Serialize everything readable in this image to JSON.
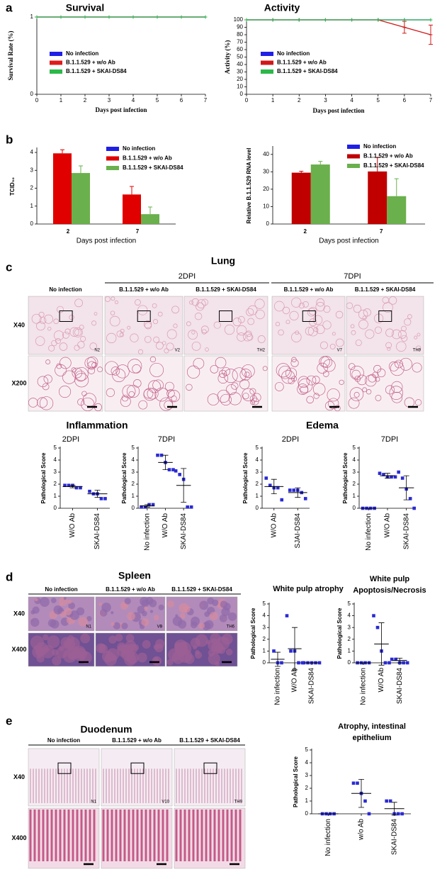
{
  "panel_labels": [
    "a",
    "b",
    "c",
    "d",
    "e"
  ],
  "histology": {
    "lung": {
      "title": "Lung",
      "groups": [
        "2DPI",
        "7DPI"
      ],
      "columns": [
        "No infection",
        "B.1.1.529 + w/o Ab",
        "B.1.1.529 + SKAI-DS84",
        "B.1.1.529 + w/o Ab",
        "B.1.1.529 + SKAI-DS84"
      ],
      "rows": [
        "X40",
        "X200"
      ],
      "image_labels": [
        "N2",
        "V2",
        "TH2",
        "V7",
        "TH9"
      ],
      "score_titles": [
        "Inflammation",
        "Edema"
      ]
    },
    "spleen": {
      "title": "Spleen",
      "columns": [
        "No infection",
        "B.1.1.529 + w/o Ab",
        "B.1.1.529 + SKAI-DS84"
      ],
      "rows": [
        "X40",
        "X400"
      ],
      "image_labels": [
        "N1",
        "V9",
        "TH6"
      ]
    },
    "duodenum": {
      "title": "Duodenum",
      "columns": [
        "No infection",
        "B.1.1.529 + w/o Ab",
        "B.1.1.529 + SKAI-DS84"
      ],
      "rows": [
        "X40",
        "X400"
      ],
      "image_labels": [
        "N1",
        "V10",
        "TH9"
      ]
    }
  },
  "chart_data": [
    {
      "type": "line",
      "title": "Survival",
      "xlabel": "Days post infection",
      "ylabel": "Survival Rate (%)",
      "x": [
        0,
        1,
        2,
        3,
        4,
        5,
        6,
        7
      ],
      "xlim": [
        0,
        7
      ],
      "xticks": [
        0,
        1,
        2,
        3,
        4,
        5,
        6,
        7
      ],
      "ylim": [
        0,
        1
      ],
      "yticks": [
        0,
        1
      ],
      "series": [
        {
          "name": "No infection",
          "color": "#1f1fe6",
          "values": [
            1,
            1,
            1,
            1,
            1,
            1,
            1,
            1
          ]
        },
        {
          "name": "B.1.1.529 + w/o Ab",
          "color": "#e01b1b",
          "values": [
            1,
            1,
            1,
            1,
            1,
            1,
            1,
            1
          ]
        },
        {
          "name": "B.1.1.529 + SKAI-DS84",
          "color": "#2db84a",
          "values": [
            1,
            1,
            1,
            1,
            1,
            1,
            1,
            1
          ]
        }
      ]
    },
    {
      "type": "line",
      "title": "Activity",
      "xlabel": "Days post infection",
      "ylabel": "Activity (%)",
      "x": [
        0,
        1,
        2,
        3,
        4,
        5,
        6,
        7
      ],
      "xlim": [
        0,
        7
      ],
      "xticks": [
        0,
        1,
        2,
        3,
        4,
        5,
        6,
        7
      ],
      "ylim": [
        0,
        100
      ],
      "yticks": [
        0,
        10,
        20,
        30,
        40,
        50,
        60,
        70,
        80,
        90,
        100
      ],
      "series": [
        {
          "name": "No infection",
          "color": "#1f1fe6",
          "values": [
            100,
            100,
            100,
            100,
            100,
            100,
            100,
            100
          ]
        },
        {
          "name": "B.1.1.529 + w/o Ab",
          "color": "#d01818",
          "values": [
            100,
            100,
            100,
            100,
            100,
            100,
            90,
            80
          ],
          "errors": [
            null,
            null,
            null,
            null,
            null,
            null,
            8,
            13
          ]
        },
        {
          "name": "B.1.1.529 + SKAI-DS84",
          "color": "#2db84a",
          "values": [
            100,
            100,
            100,
            100,
            100,
            100,
            100,
            100
          ]
        }
      ]
    },
    {
      "type": "bar",
      "xlabel": "Days post infection",
      "ylabel": "TCID₅₀",
      "categories": [
        "2",
        "7"
      ],
      "ylim": [
        0,
        4.2
      ],
      "yticks": [
        0,
        1,
        2,
        3,
        4
      ],
      "series": [
        {
          "name": "No infection",
          "color": "#1f1fe6",
          "values": [
            null,
            null
          ]
        },
        {
          "name": "B.1.1.529 + w/o Ab",
          "color": "#e00000",
          "values": [
            3.95,
            1.65
          ],
          "errors": [
            0.2,
            0.45
          ]
        },
        {
          "name": "B.1.1.529 + SKAI-DS84",
          "color": "#6ab04c",
          "values": [
            2.85,
            0.55
          ],
          "errors": [
            0.4,
            0.4
          ]
        }
      ]
    },
    {
      "type": "bar",
      "xlabel": "Days post infection",
      "ylabel": "Relative B.1.1.529 RNA level",
      "categories": [
        "2",
        "7"
      ],
      "ylim": [
        0,
        44
      ],
      "yticks": [
        0,
        10,
        20,
        30,
        40
      ],
      "series": [
        {
          "name": "No infection",
          "color": "#1f1fe6",
          "values": [
            null,
            null
          ]
        },
        {
          "name": "B.1.1.529 + w/o Ab",
          "color": "#c00000",
          "values": [
            29.5,
            30.2
          ],
          "errors": [
            0.8,
            8
          ]
        },
        {
          "name": "B.1.1.529 + SKAI-DS84",
          "color": "#6ab04c",
          "values": [
            34.2,
            16
          ],
          "errors": [
            1.8,
            10
          ]
        }
      ]
    },
    {
      "type": "dot",
      "title": "2DPI",
      "ylabel": "Pathological Score",
      "color": "#2a2ad4",
      "ylim": [
        0,
        5
      ],
      "yticks": [
        0,
        1,
        2,
        3,
        4,
        5
      ],
      "categories": [
        "W/O Ab",
        "SKAI-DS84"
      ],
      "points": [
        [
          1.9,
          1.9,
          1.9,
          1.7,
          1.7
        ],
        [
          1.4,
          1.2,
          1.2,
          0.8,
          0.8
        ]
      ],
      "mean": [
        1.8,
        1.2
      ],
      "sd": [
        0.1,
        0.3
      ]
    },
    {
      "type": "dot",
      "title": "7DPI",
      "ylabel": "Pathological Score",
      "color": "#2a2ad4",
      "ylim": [
        0,
        5
      ],
      "yticks": [
        0,
        1,
        2,
        3,
        4,
        5
      ],
      "categories": [
        "No infection",
        "W/O Ab",
        "SKAI-DS84"
      ],
      "points": [
        [
          0.1,
          0.1,
          0.3,
          0.3
        ],
        [
          4.4,
          4.4,
          3.8,
          3.2,
          3.2
        ],
        [
          3.1,
          2.8,
          2.4,
          0.1,
          0.1
        ]
      ],
      "mean": [
        0.2,
        3.8,
        1.9
      ],
      "sd": [
        0.1,
        0.6,
        1.4
      ]
    },
    {
      "type": "dot",
      "title": "2DPI",
      "ylabel": "Pathological Score",
      "color": "#2a2ad4",
      "ylim": [
        0,
        5
      ],
      "yticks": [
        0,
        1,
        2,
        3,
        4,
        5
      ],
      "categories": [
        "W/O Ab",
        "SJAI-DS84"
      ],
      "points": [
        [
          2.5,
          1.9,
          1.7,
          1.7,
          0.7
        ],
        [
          1.5,
          1.5,
          1.5,
          1.3,
          0.8
        ]
      ],
      "mean": [
        1.8,
        1.3
      ],
      "sd": [
        0.6,
        0.4
      ]
    },
    {
      "type": "dot",
      "title": "7DPI",
      "ylabel": "Pathological Score",
      "color": "#2a2ad4",
      "ylim": [
        0,
        5
      ],
      "yticks": [
        0,
        1,
        2,
        3,
        4,
        5
      ],
      "categories": [
        "No infection",
        "W/O Ab",
        "SKAI-DS84"
      ],
      "points": [
        [
          0,
          0,
          0,
          0
        ],
        [
          2.9,
          2.8,
          2.6,
          2.6,
          2.6
        ],
        [
          3,
          2.5,
          1.6,
          0.8,
          0
        ]
      ],
      "mean": [
        0,
        2.7,
        1.7
      ],
      "sd": [
        0,
        0.2,
        1
      ]
    },
    {
      "type": "dot",
      "title": "White pulp atrophy",
      "ylabel": "Pathological Score",
      "color": "#2a2ad4",
      "ylim": [
        0,
        5
      ],
      "yticks": [
        0,
        1,
        2,
        3,
        4,
        5
      ],
      "categories": [
        "No infection",
        "W/O Ab",
        "SKAI-DS84"
      ],
      "points": [
        [
          1,
          0,
          0
        ],
        [
          4,
          1,
          1,
          0,
          0
        ],
        [
          0,
          0,
          0,
          0,
          0
        ]
      ],
      "mean": [
        0.3,
        1.2,
        0
      ],
      "sd": [
        0.6,
        1.8,
        0
      ]
    },
    {
      "type": "dot",
      "title": [
        "White pulp",
        "Apoptosis/Necrosis"
      ],
      "ylabel": "Pathological Score",
      "color": "#2a2ad4",
      "ylim": [
        0,
        5
      ],
      "yticks": [
        0,
        1,
        2,
        3,
        4,
        5
      ],
      "categories": [
        "No infection",
        "W/O Ab",
        "SKAI-DS84"
      ],
      "points": [
        [
          0,
          0,
          0,
          0
        ],
        [
          4,
          3,
          1,
          0,
          0
        ],
        [
          0.3,
          0.3,
          0,
          0,
          0
        ]
      ],
      "mean": [
        0,
        1.6,
        0.2
      ],
      "sd": [
        0,
        1.8,
        0.2
      ]
    },
    {
      "type": "dot",
      "title": [
        "Atrophy, intestinal",
        "epithelium"
      ],
      "ylabel": "Pathological Score",
      "color": "#2a2ad4",
      "ylim": [
        0,
        5
      ],
      "yticks": [
        0,
        1,
        2,
        3,
        4,
        5
      ],
      "categories": [
        "No infection",
        "w/o Ab",
        "SKAI-DS84"
      ],
      "points": [
        [
          0,
          0,
          0,
          0
        ],
        [
          2.4,
          2.4,
          1.6,
          1,
          0
        ],
        [
          1,
          1,
          0,
          0,
          0
        ]
      ],
      "mean": [
        0,
        1.6,
        0.4
      ],
      "sd": [
        0,
        1.1,
        0.5
      ]
    }
  ]
}
